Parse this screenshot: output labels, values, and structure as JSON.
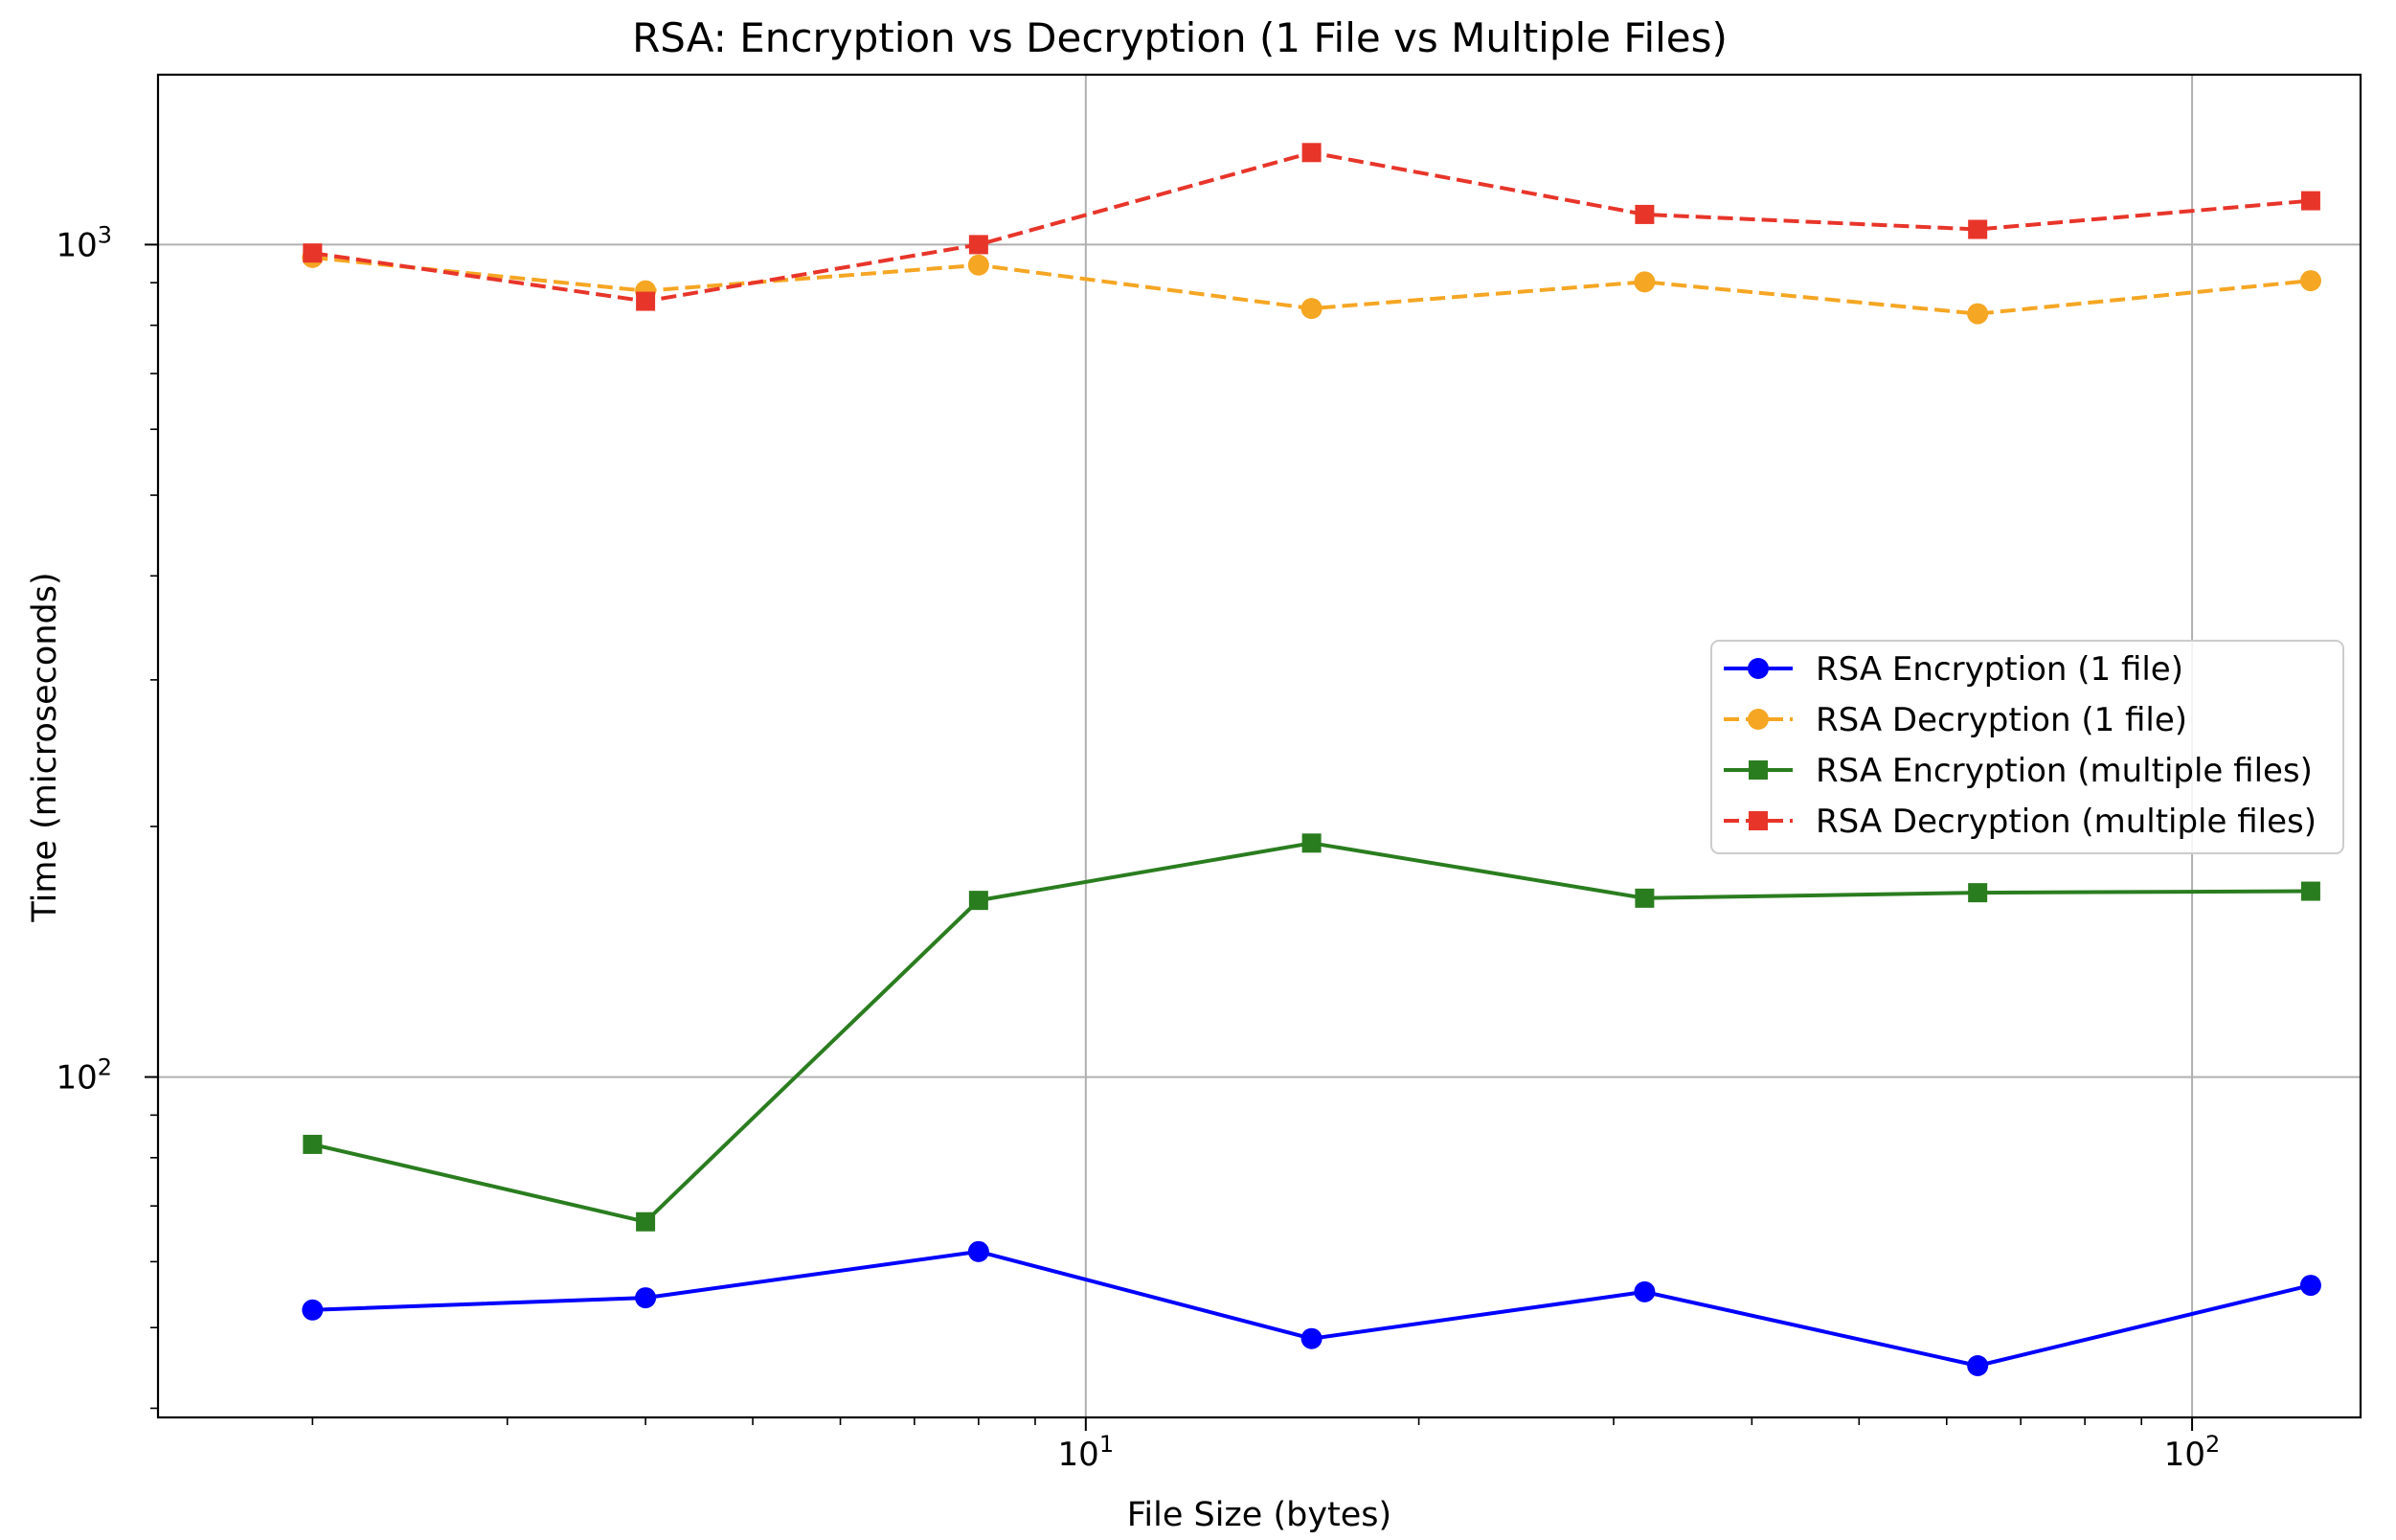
{
  "chart_data": {
    "type": "line",
    "title": "RSA: Encryption vs Decryption (1 File vs Multiple Files)",
    "xlabel": "File Size (bytes)",
    "ylabel": "Time (microseconds)",
    "x_scale": "log",
    "y_scale": "log",
    "x": [
      2,
      4,
      8,
      16,
      32,
      64,
      128
    ],
    "xlim": [
      1.45,
      142
    ],
    "ylim": [
      39,
      1600
    ],
    "x_major_ticks": [
      {
        "value": 10,
        "base": "10",
        "exp": "1"
      },
      {
        "value": 100,
        "base": "10",
        "exp": "2"
      }
    ],
    "y_major_ticks": [
      {
        "value": 100,
        "base": "10",
        "exp": "2"
      },
      {
        "value": 1000,
        "base": "10",
        "exp": "3"
      }
    ],
    "grid": true,
    "legend_position": "center-right",
    "series": [
      {
        "name": "RSA Encryption (1 file)",
        "color": "#0000ff",
        "linestyle": "solid",
        "marker": "circle",
        "values": [
          52.5,
          54.3,
          61.7,
          48.5,
          55.2,
          45.0,
          56.2
        ]
      },
      {
        "name": "RSA Decryption (1 file)",
        "color": "#f5a623",
        "linestyle": "dashed",
        "marker": "circle",
        "values": [
          965,
          880,
          945,
          838,
          902,
          826,
          905
        ]
      },
      {
        "name": "RSA Encryption (multiple files)",
        "color": "#2a7d1f",
        "linestyle": "solid",
        "marker": "square",
        "values": [
          83,
          67,
          163,
          191,
          164,
          166.5,
          167.2
        ]
      },
      {
        "name": "RSA Decryption (multiple files)",
        "color": "#e8352a",
        "linestyle": "dashed",
        "marker": "square",
        "values": [
          977,
          855,
          1000,
          1290,
          1087,
          1043,
          1129
        ]
      }
    ]
  }
}
